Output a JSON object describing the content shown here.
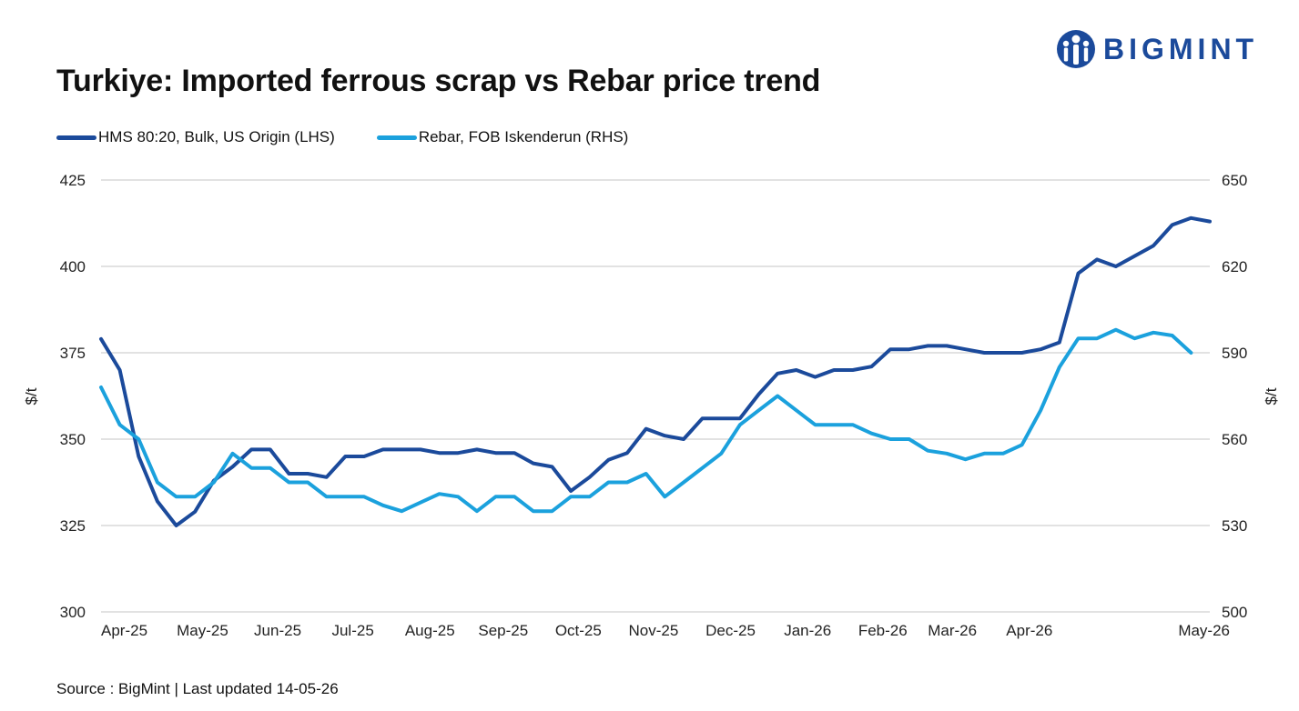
{
  "title": "Turkiye: Imported ferrous scrap vs Rebar price trend",
  "logo": {
    "text": "BIGMINT",
    "icon": "bigmint-logo-icon",
    "color": "#1b4a9b"
  },
  "source": "Source : BigMint | Last updated 14-05-26",
  "chart_data": {
    "type": "line",
    "title": "Turkiye: Imported ferrous scrap vs Rebar price trend",
    "ylabel_left": "$/t",
    "ylabel_right": "$/t",
    "ylim_left": [
      300,
      425
    ],
    "ylim_right": [
      500,
      650
    ],
    "yticks_left": [
      "425",
      "400",
      "375",
      "350",
      "325",
      "300"
    ],
    "yticks_right": [
      "650",
      "620",
      "590",
      "560",
      "530",
      "500"
    ],
    "xtick_labels": [
      "Apr-25",
      "May-25",
      "Jun-25",
      "Jul-25",
      "Aug-25",
      "Sep-25",
      "Oct-25",
      "Nov-25",
      "Dec-25",
      "Jan-26",
      "Feb-26",
      "Mar-26",
      "Apr-26",
      "May-26"
    ],
    "xtick_positions": [
      0,
      5.4,
      9.4,
      13.4,
      17.5,
      21.4,
      25.4,
      29.4,
      33.5,
      37.6,
      41.6,
      45.3,
      49.4,
      53.5
    ],
    "grid": true,
    "legend_position": "top-left",
    "series": [
      {
        "name": "HMS 80:20, Bulk, US Origin (LHS)",
        "axis": "left",
        "color": "#1b4a9b",
        "values": [
          379,
          370,
          345,
          332,
          325,
          329,
          338,
          342,
          347,
          347,
          340,
          340,
          339,
          345,
          345,
          347,
          347,
          347,
          346,
          346,
          347,
          346,
          346,
          343,
          342,
          335,
          339,
          344,
          346,
          353,
          351,
          350,
          356,
          356,
          356,
          363,
          369,
          370,
          368,
          370,
          370,
          371,
          376,
          376,
          377,
          377,
          376,
          375,
          375,
          375,
          376,
          378,
          398,
          402,
          400,
          403,
          406,
          412,
          414,
          413
        ]
      },
      {
        "name": "Rebar, FOB Iskenderun (RHS)",
        "axis": "right",
        "color": "#1ba1dd",
        "values": [
          578,
          565,
          560,
          545,
          540,
          540,
          545,
          555,
          550,
          550,
          545,
          545,
          540,
          540,
          540,
          537,
          535,
          538,
          541,
          540,
          535,
          540,
          540,
          535,
          535,
          540,
          540,
          545,
          545,
          548,
          540,
          545,
          550,
          555,
          565,
          570,
          575,
          570,
          565,
          565,
          565,
          562,
          560,
          560,
          556,
          555,
          553,
          555,
          555,
          558,
          570,
          585,
          595,
          595,
          598,
          595,
          597,
          596,
          590
        ]
      }
    ]
  }
}
